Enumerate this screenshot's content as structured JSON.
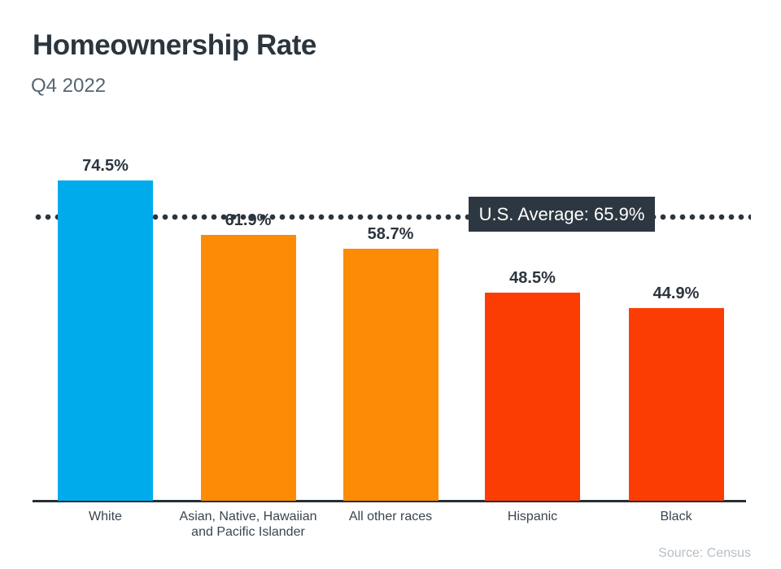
{
  "header": {
    "title": "Homeownership Rate",
    "subtitle": "Q4 2022"
  },
  "average": {
    "label": "U.S. Average: 65.9%",
    "value": 65.9
  },
  "source": {
    "label": "Source: Census"
  },
  "colors": {
    "blue_bar": "#00ABEB",
    "orange_bar": "#FC8B05",
    "red_bar": "#FC3D03",
    "dark_text": "#2B353E",
    "badge_background": "#2D3741",
    "badge_text": "#FFFFFF",
    "subtitle_text": "#566672",
    "source_text": "#B7BFC5"
  },
  "chart_data": {
    "type": "bar",
    "title": "Homeownership Rate",
    "subtitle": "Q4 2022",
    "categories": [
      "White",
      "Asian, Native, Hawaiian and Pacific Islander",
      "All other races",
      "Hispanic",
      "Black"
    ],
    "values": [
      74.5,
      61.9,
      58.7,
      48.5,
      44.9
    ],
    "value_labels": [
      "74.5%",
      "61.9%",
      "58.7%",
      "48.5%",
      "44.9%"
    ],
    "bar_colors": [
      "#00ABEB",
      "#FC8B05",
      "#FC8B05",
      "#FC3D03",
      "#FC3D03"
    ],
    "reference_line": {
      "label": "U.S. Average: 65.9%",
      "value": 65.9
    },
    "xlabel": "",
    "ylabel": "",
    "ylim": [
      0,
      100
    ],
    "grid": false,
    "legend": "none",
    "source": "Source: Census"
  }
}
